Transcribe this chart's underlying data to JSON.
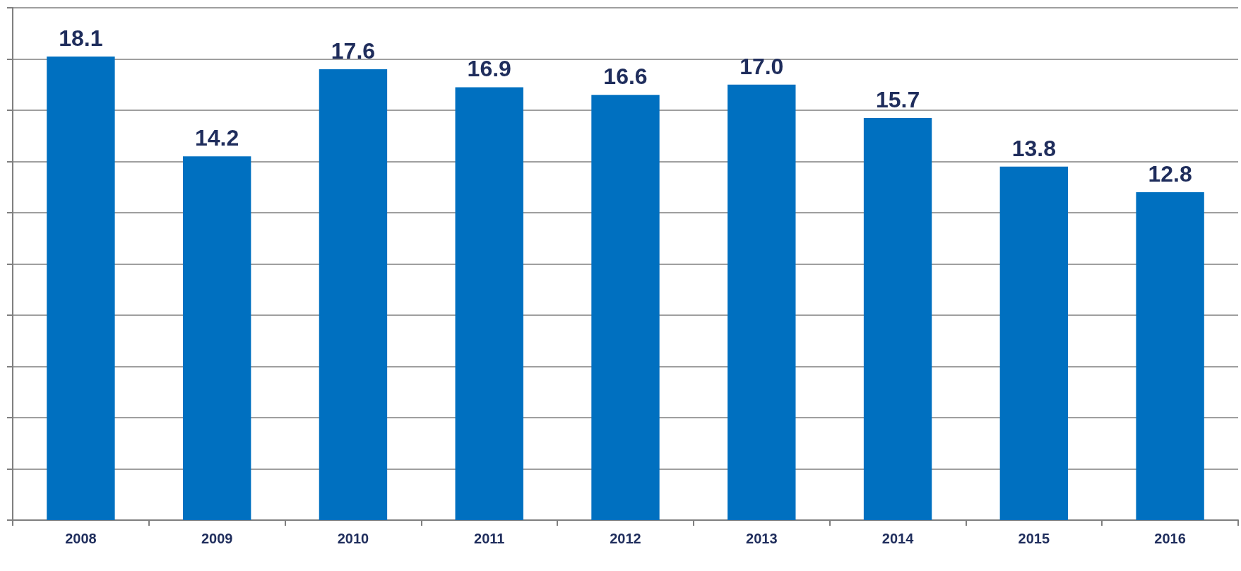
{
  "chart_data": {
    "type": "bar",
    "categories": [
      "2008",
      "2009",
      "2010",
      "2011",
      "2012",
      "2013",
      "2014",
      "2015",
      "2016"
    ],
    "values": [
      18.1,
      14.2,
      17.6,
      16.9,
      16.6,
      17.0,
      15.7,
      13.8,
      12.8
    ],
    "value_labels": [
      "18.1",
      "14.2",
      "17.6",
      "16.9",
      "16.6",
      "17.0",
      "15.7",
      "13.8",
      "12.8"
    ],
    "color": "#0070c0",
    "grid": "y",
    "tick_labels": "x",
    "ylim": [
      0,
      20
    ],
    "yticks": [
      {
        "value": 0,
        "label": null
      },
      {
        "value": 2,
        "label": null
      },
      {
        "value": 4,
        "label": null
      },
      {
        "value": 6,
        "label": null
      },
      {
        "value": 8,
        "label": null
      },
      {
        "value": 10,
        "label": null
      },
      {
        "value": 12,
        "label": null
      },
      {
        "value": 14,
        "label": null
      },
      {
        "value": 16,
        "label": null
      },
      {
        "value": 18,
        "label": null
      },
      {
        "value": 20,
        "label": null
      }
    ]
  }
}
